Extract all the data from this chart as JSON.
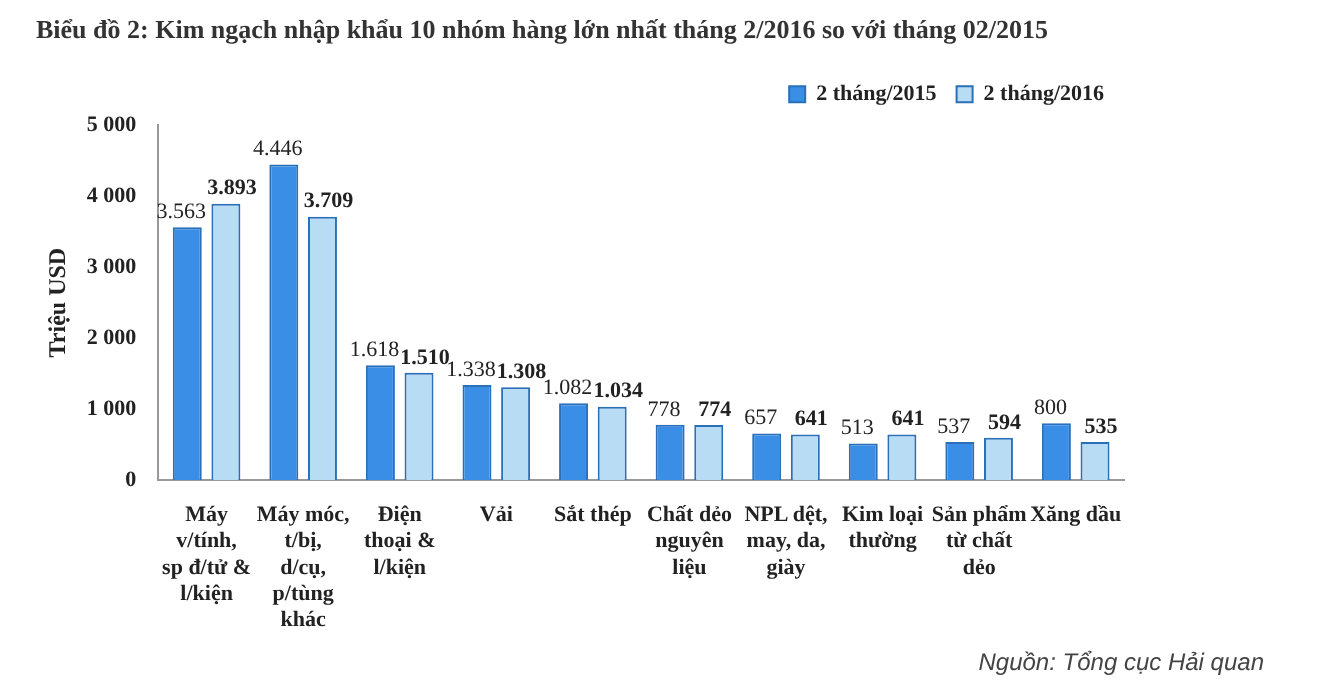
{
  "chart_data": {
    "type": "bar",
    "title": "Biểu đồ 2: Kim ngạch nhập khẩu 10 nhóm hàng lớn nhất tháng 2/2016 so với tháng 02/2015",
    "ylabel": "Triệu USD",
    "categories": [
      "Máy v/tính, sp đ/tử & l/kiện",
      "Máy móc, t/bị, d/cụ, p/tùng khác",
      "Điện thoại & l/kiện",
      "Vải",
      "Sắt thép",
      "Chất dẻo nguyên liệu",
      "NPL dệt, may, da, giày",
      "Kim loại thường",
      "Sản phẩm từ chất dẻo",
      "Xăng dầu"
    ],
    "series": [
      {
        "name": "2 tháng/2015",
        "color": "#3a8ee6",
        "values": [
          3563,
          4446,
          1618,
          1338,
          1082,
          778,
          657,
          513,
          537,
          800
        ],
        "value_labels": [
          "3.563",
          "4.446",
          "1.618",
          "1.338",
          "1.082",
          "778",
          "657",
          "513",
          "537",
          "800"
        ]
      },
      {
        "name": "2 tháng/2016",
        "color": "#b9dcf5",
        "values": [
          3893,
          3709,
          1510,
          1308,
          1034,
          774,
          641,
          641,
          594,
          535
        ],
        "value_labels": [
          "3.893",
          "3.709",
          "1.510",
          "1.308",
          "1.034",
          "774",
          "641",
          "641",
          "594",
          "535"
        ]
      }
    ],
    "ylim": [
      0,
      5000
    ],
    "yticks": [
      0,
      {
        "value": 1000,
        "label": "1 000"
      },
      {
        "value": 2000,
        "label": "2 000"
      },
      {
        "value": 3000,
        "label": "3 000"
      },
      {
        "value": 4000,
        "label": "4 000"
      },
      {
        "value": 5000,
        "label": "5 000"
      }
    ],
    "grid": false,
    "legend": "top right",
    "annotations": [
      "Nguồn: Tổng cục Hải quan"
    ]
  }
}
